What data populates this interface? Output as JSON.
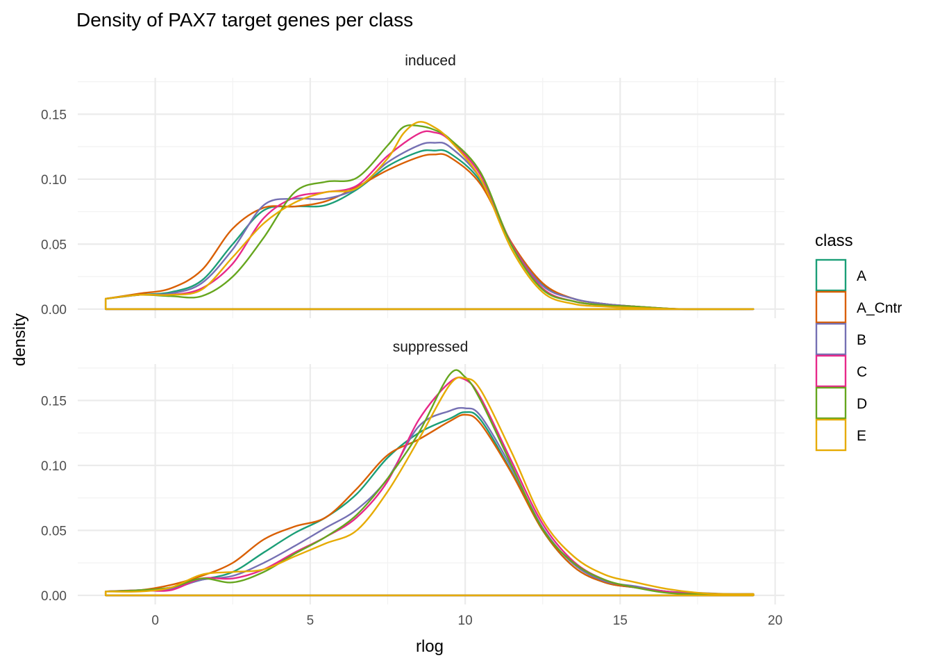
{
  "chart_data": {
    "type": "line",
    "subtype": "density",
    "title": "Density of PAX7 target genes per class",
    "xlabel": "rlog",
    "ylabel": "density",
    "xlim": [
      -2.5,
      20.3
    ],
    "x_ticks": [
      0,
      5,
      10,
      15,
      20
    ],
    "y_ticks": [
      0.0,
      0.05,
      0.1,
      0.15
    ],
    "y_tick_labels": [
      "0.00",
      "0.05",
      "0.10",
      "0.15"
    ],
    "grid": true,
    "legend": {
      "title": "class",
      "position": "right",
      "entries": [
        "A",
        "A_Cntr",
        "B",
        "C",
        "D",
        "E"
      ]
    },
    "colors": {
      "A": "#1b9e77",
      "A_Cntr": "#d95f02",
      "B": "#7570b3",
      "C": "#e7298a",
      "D": "#66a61e",
      "E": "#e6ab02"
    },
    "panels": [
      {
        "name": "induced",
        "ylim": [
          -0.007,
          0.178
        ],
        "series": [
          {
            "name": "A",
            "x": [
              -1.6,
              -0.5,
              0.5,
              1.5,
              2.5,
              3.5,
              4.5,
              5.5,
              6.5,
              7.5,
              8.5,
              9.0,
              9.5,
              10.5,
              11.5,
              12.5,
              13.5,
              14.5,
              15.5,
              17.0,
              19.3
            ],
            "y": [
              0.008,
              0.011,
              0.013,
              0.022,
              0.05,
              0.076,
              0.079,
              0.08,
              0.092,
              0.11,
              0.121,
              0.122,
              0.12,
              0.098,
              0.05,
              0.019,
              0.008,
              0.004,
              0.002,
              0.0,
              0.0
            ]
          },
          {
            "name": "A_Cntr",
            "x": [
              -1.6,
              -0.5,
              0.5,
              1.5,
              2.5,
              3.5,
              4.5,
              5.5,
              6.5,
              7.5,
              8.5,
              9.0,
              9.5,
              10.5,
              11.5,
              12.5,
              13.5,
              14.5,
              15.5,
              17.0,
              19.3
            ],
            "y": [
              0.008,
              0.012,
              0.016,
              0.03,
              0.062,
              0.078,
              0.079,
              0.083,
              0.094,
              0.107,
              0.117,
              0.119,
              0.117,
              0.096,
              0.051,
              0.02,
              0.008,
              0.004,
              0.002,
              0.0,
              0.0
            ]
          },
          {
            "name": "B",
            "x": [
              -1.6,
              -0.5,
              0.5,
              1.5,
              2.5,
              3.5,
              4.5,
              5.5,
              6.5,
              7.5,
              8.5,
              9.0,
              9.5,
              10.5,
              11.5,
              12.5,
              13.5,
              14.5,
              15.5,
              17.0,
              19.3
            ],
            "y": [
              0.008,
              0.011,
              0.012,
              0.02,
              0.046,
              0.08,
              0.085,
              0.085,
              0.093,
              0.113,
              0.126,
              0.128,
              0.125,
              0.1,
              0.05,
              0.018,
              0.008,
              0.004,
              0.002,
              0.0,
              0.0
            ]
          },
          {
            "name": "C",
            "x": [
              -1.6,
              -0.5,
              0.5,
              1.5,
              2.5,
              3.5,
              4.5,
              5.5,
              6.5,
              7.5,
              8.5,
              9.0,
              9.5,
              10.5,
              11.5,
              12.5,
              13.5,
              14.5,
              15.5,
              17.0,
              19.3
            ],
            "y": [
              0.008,
              0.011,
              0.011,
              0.016,
              0.035,
              0.07,
              0.086,
              0.09,
              0.095,
              0.118,
              0.135,
              0.136,
              0.13,
              0.103,
              0.05,
              0.016,
              0.006,
              0.003,
              0.002,
              0.0,
              0.0
            ]
          },
          {
            "name": "D",
            "x": [
              -1.6,
              -0.5,
              0.5,
              1.5,
              2.5,
              3.5,
              4.5,
              5.5,
              6.5,
              7.5,
              8.0,
              8.5,
              9.0,
              9.5,
              10.5,
              11.5,
              12.5,
              13.5,
              14.5,
              15.5,
              17.0,
              19.3
            ],
            "y": [
              0.008,
              0.011,
              0.01,
              0.01,
              0.025,
              0.055,
              0.09,
              0.098,
              0.101,
              0.126,
              0.14,
              0.141,
              0.138,
              0.131,
              0.105,
              0.049,
              0.015,
              0.006,
              0.003,
              0.002,
              0.0,
              0.0
            ]
          },
          {
            "name": "E",
            "x": [
              -1.6,
              -0.5,
              0.5,
              1.5,
              2.5,
              3.5,
              4.5,
              5.5,
              6.5,
              7.5,
              8.0,
              8.5,
              9.0,
              9.5,
              10.5,
              11.5,
              12.5,
              13.5,
              14.5,
              15.5,
              17.0,
              19.3
            ],
            "y": [
              0.008,
              0.011,
              0.011,
              0.015,
              0.04,
              0.066,
              0.082,
              0.09,
              0.093,
              0.116,
              0.135,
              0.144,
              0.14,
              0.13,
              0.1,
              0.046,
              0.013,
              0.004,
              0.002,
              0.001,
              0.0,
              0.0
            ]
          }
        ]
      },
      {
        "name": "suppressed",
        "ylim": [
          -0.007,
          0.178
        ],
        "series": [
          {
            "name": "A",
            "x": [
              -1.6,
              -0.5,
              0.5,
              1.5,
              2.5,
              3.5,
              4.5,
              5.5,
              6.5,
              7.5,
              8.5,
              9.5,
              10.0,
              10.5,
              11.5,
              12.5,
              13.5,
              14.5,
              15.5,
              16.5,
              17.5,
              18.5,
              19.3
            ],
            "y": [
              0.003,
              0.004,
              0.006,
              0.012,
              0.018,
              0.033,
              0.048,
              0.06,
              0.078,
              0.106,
              0.125,
              0.136,
              0.141,
              0.135,
              0.095,
              0.05,
              0.022,
              0.01,
              0.006,
              0.003,
              0.001,
              0.001,
              0.001
            ]
          },
          {
            "name": "A_Cntr",
            "x": [
              -1.6,
              -0.5,
              0.5,
              1.5,
              2.5,
              3.5,
              4.5,
              5.5,
              6.5,
              7.5,
              8.5,
              9.5,
              10.0,
              10.5,
              11.5,
              12.5,
              13.5,
              14.5,
              15.5,
              16.5,
              17.5,
              18.5,
              19.3
            ],
            "y": [
              0.003,
              0.004,
              0.008,
              0.015,
              0.025,
              0.043,
              0.053,
              0.06,
              0.082,
              0.108,
              0.12,
              0.134,
              0.139,
              0.132,
              0.094,
              0.05,
              0.022,
              0.01,
              0.006,
              0.003,
              0.001,
              0.001,
              0.001
            ]
          },
          {
            "name": "B",
            "x": [
              -1.6,
              -0.5,
              0.5,
              1.5,
              2.5,
              3.5,
              4.5,
              5.5,
              6.5,
              7.5,
              8.5,
              9.5,
              10.0,
              10.5,
              11.5,
              12.5,
              13.5,
              14.5,
              15.5,
              16.5,
              17.5,
              18.5,
              19.3
            ],
            "y": [
              0.003,
              0.004,
              0.005,
              0.012,
              0.015,
              0.025,
              0.038,
              0.052,
              0.066,
              0.09,
              0.13,
              0.142,
              0.144,
              0.138,
              0.098,
              0.052,
              0.024,
              0.011,
              0.007,
              0.003,
              0.002,
              0.001,
              0.001
            ]
          },
          {
            "name": "C",
            "x": [
              -1.6,
              -0.5,
              0.5,
              1.5,
              2.5,
              3.5,
              4.5,
              5.5,
              6.5,
              7.5,
              8.5,
              9.5,
              10.0,
              10.5,
              11.5,
              12.5,
              13.5,
              14.5,
              15.5,
              16.5,
              17.5,
              18.5,
              19.3
            ],
            "y": [
              0.003,
              0.004,
              0.004,
              0.013,
              0.013,
              0.02,
              0.033,
              0.045,
              0.06,
              0.088,
              0.135,
              0.164,
              0.166,
              0.152,
              0.103,
              0.055,
              0.026,
              0.012,
              0.006,
              0.003,
              0.001,
              0.001,
              0.001
            ]
          },
          {
            "name": "D",
            "x": [
              -1.6,
              -0.5,
              0.5,
              1.5,
              2.5,
              3.5,
              4.5,
              5.5,
              6.5,
              7.5,
              8.5,
              9.5,
              10.0,
              10.5,
              11.5,
              12.5,
              13.5,
              14.5,
              15.5,
              16.5,
              17.5,
              18.5,
              19.3
            ],
            "y": [
              0.003,
              0.004,
              0.006,
              0.013,
              0.01,
              0.018,
              0.032,
              0.045,
              0.062,
              0.09,
              0.125,
              0.17,
              0.168,
              0.15,
              0.1,
              0.051,
              0.025,
              0.012,
              0.006,
              0.002,
              0.001,
              0.001,
              0.001
            ]
          },
          {
            "name": "E",
            "x": [
              -1.6,
              -0.5,
              0.5,
              1.5,
              2.5,
              3.5,
              4.5,
              5.5,
              6.5,
              7.5,
              8.5,
              9.5,
              10.0,
              10.5,
              11.5,
              12.5,
              13.5,
              14.5,
              15.5,
              16.5,
              17.5,
              18.5,
              19.3
            ],
            "y": [
              0.003,
              0.003,
              0.006,
              0.016,
              0.018,
              0.02,
              0.03,
              0.04,
              0.05,
              0.08,
              0.12,
              0.162,
              0.167,
              0.158,
              0.11,
              0.058,
              0.03,
              0.016,
              0.01,
              0.005,
              0.002,
              0.001,
              0.001
            ]
          }
        ]
      }
    ]
  }
}
